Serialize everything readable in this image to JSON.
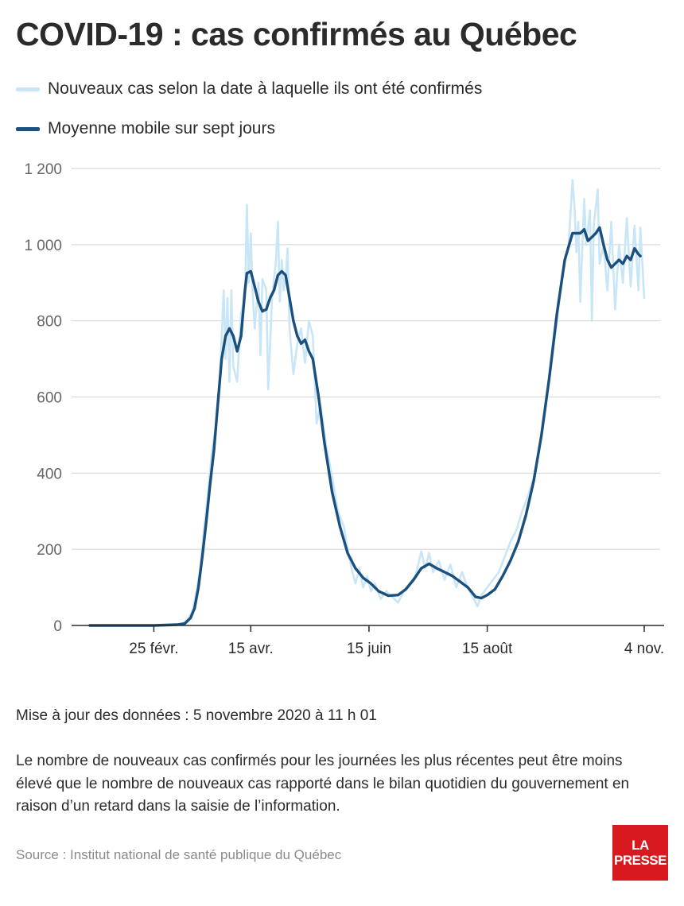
{
  "title": "COVID-19 : cas confirmés au Québec",
  "legend": [
    {
      "label": "Nouveaux cas selon la date à laquelle ils ont été confirmés",
      "color": "#c9e6f7"
    },
    {
      "label": "Moyenne mobile sur sept jours",
      "color": "#1b4f7d"
    }
  ],
  "footer": {
    "update": "Mise à jour des données : 5 novembre 2020 à 11 h 01",
    "note": "Le nombre de nouveaux cas confirmés pour les journées les plus récentes peut être moins élevé que le nombre de nouveaux cas rapporté dans le bilan quotidien du gouvernement en raison d’un retard dans la saisie de l’information.",
    "source": "Source : Institut national de santé publique du Québec"
  },
  "logo": {
    "line1": "LA",
    "line2": "PRESSE"
  },
  "chart_data": {
    "type": "line",
    "ylim": [
      0,
      1200
    ],
    "grid": true,
    "x_range": [
      "2020-01-23",
      "2020-11-04"
    ],
    "y_ticks": [
      0,
      200,
      400,
      600,
      800,
      1000,
      1200
    ],
    "y_tick_labels": [
      "0",
      "200",
      "400",
      "600",
      "800",
      "1 000",
      "1 200"
    ],
    "x_ticks": [
      {
        "date": "2020-02-25",
        "label": "25 févr."
      },
      {
        "date": "2020-04-15",
        "label": "15 avr."
      },
      {
        "date": "2020-06-15",
        "label": "15 juin"
      },
      {
        "date": "2020-08-15",
        "label": "15 août"
      },
      {
        "date": "2020-11-04",
        "label": "4 nov."
      }
    ],
    "series": [
      {
        "name": "Nouveaux cas selon la date à laquelle ils ont été confirmés",
        "color": "#c9e6f7",
        "points": [
          [
            "2020-01-23",
            0
          ],
          [
            "2020-02-25",
            0
          ],
          [
            "2020-03-05",
            0
          ],
          [
            "2020-03-08",
            2
          ],
          [
            "2020-03-11",
            5
          ],
          [
            "2020-03-14",
            20
          ],
          [
            "2020-03-16",
            40
          ],
          [
            "2020-03-18",
            90
          ],
          [
            "2020-03-20",
            150
          ],
          [
            "2020-03-22",
            260
          ],
          [
            "2020-03-24",
            350
          ],
          [
            "2020-03-26",
            460
          ],
          [
            "2020-03-28",
            520
          ],
          [
            "2020-03-30",
            640
          ],
          [
            "2020-04-01",
            880
          ],
          [
            "2020-04-02",
            700
          ],
          [
            "2020-04-03",
            860
          ],
          [
            "2020-04-04",
            640
          ],
          [
            "2020-04-05",
            880
          ],
          [
            "2020-04-06",
            680
          ],
          [
            "2020-04-08",
            640
          ],
          [
            "2020-04-10",
            820
          ],
          [
            "2020-04-12",
            860
          ],
          [
            "2020-04-13",
            1105
          ],
          [
            "2020-04-14",
            900
          ],
          [
            "2020-04-15",
            1030
          ],
          [
            "2020-04-16",
            870
          ],
          [
            "2020-04-17",
            780
          ],
          [
            "2020-04-19",
            900
          ],
          [
            "2020-04-20",
            710
          ],
          [
            "2020-04-21",
            910
          ],
          [
            "2020-04-23",
            880
          ],
          [
            "2020-04-24",
            620
          ],
          [
            "2020-04-26",
            860
          ],
          [
            "2020-04-28",
            960
          ],
          [
            "2020-04-29",
            1060
          ],
          [
            "2020-04-30",
            850
          ],
          [
            "2020-05-01",
            960
          ],
          [
            "2020-05-02",
            880
          ],
          [
            "2020-05-03",
            910
          ],
          [
            "2020-05-04",
            990
          ],
          [
            "2020-05-05",
            780
          ],
          [
            "2020-05-07",
            660
          ],
          [
            "2020-05-09",
            740
          ],
          [
            "2020-05-11",
            780
          ],
          [
            "2020-05-13",
            690
          ],
          [
            "2020-05-15",
            800
          ],
          [
            "2020-05-17",
            760
          ],
          [
            "2020-05-19",
            530
          ],
          [
            "2020-05-21",
            580
          ],
          [
            "2020-05-24",
            470
          ],
          [
            "2020-05-27",
            390
          ],
          [
            "2020-05-30",
            300
          ],
          [
            "2020-06-02",
            260
          ],
          [
            "2020-06-04",
            200
          ],
          [
            "2020-06-06",
            150
          ],
          [
            "2020-06-08",
            110
          ],
          [
            "2020-06-10",
            150
          ],
          [
            "2020-06-12",
            100
          ],
          [
            "2020-06-14",
            130
          ],
          [
            "2020-06-16",
            90
          ],
          [
            "2020-06-18",
            110
          ],
          [
            "2020-06-21",
            70
          ],
          [
            "2020-06-24",
            90
          ],
          [
            "2020-06-27",
            75
          ],
          [
            "2020-06-30",
            60
          ],
          [
            "2020-07-03",
            90
          ],
          [
            "2020-07-06",
            110
          ],
          [
            "2020-07-09",
            130
          ],
          [
            "2020-07-12",
            195
          ],
          [
            "2020-07-14",
            150
          ],
          [
            "2020-07-16",
            190
          ],
          [
            "2020-07-18",
            140
          ],
          [
            "2020-07-21",
            170
          ],
          [
            "2020-07-24",
            120
          ],
          [
            "2020-07-27",
            160
          ],
          [
            "2020-07-30",
            100
          ],
          [
            "2020-08-02",
            140
          ],
          [
            "2020-08-05",
            100
          ],
          [
            "2020-08-08",
            70
          ],
          [
            "2020-08-10",
            50
          ],
          [
            "2020-08-12",
            80
          ],
          [
            "2020-08-15",
            100
          ],
          [
            "2020-08-18",
            120
          ],
          [
            "2020-08-21",
            140
          ],
          [
            "2020-08-24",
            180
          ],
          [
            "2020-08-27",
            220
          ],
          [
            "2020-08-30",
            250
          ],
          [
            "2020-09-02",
            300
          ],
          [
            "2020-09-05",
            340
          ],
          [
            "2020-09-08",
            390
          ],
          [
            "2020-09-11",
            470
          ],
          [
            "2020-09-14",
            580
          ],
          [
            "2020-09-17",
            680
          ],
          [
            "2020-09-20",
            800
          ],
          [
            "2020-09-23",
            930
          ],
          [
            "2020-09-26",
            1000
          ],
          [
            "2020-09-28",
            1170
          ],
          [
            "2020-09-29",
            1100
          ],
          [
            "2020-09-30",
            980
          ],
          [
            "2020-10-01",
            1060
          ],
          [
            "2020-10-02",
            850
          ],
          [
            "2020-10-04",
            1120
          ],
          [
            "2020-10-05",
            1000
          ],
          [
            "2020-10-07",
            1090
          ],
          [
            "2020-10-08",
            800
          ],
          [
            "2020-10-09",
            1050
          ],
          [
            "2020-10-11",
            1145
          ],
          [
            "2020-10-12",
            950
          ],
          [
            "2020-10-14",
            1000
          ],
          [
            "2020-10-16",
            880
          ],
          [
            "2020-10-18",
            1060
          ],
          [
            "2020-10-20",
            830
          ],
          [
            "2020-10-22",
            1000
          ],
          [
            "2020-10-24",
            900
          ],
          [
            "2020-10-26",
            1070
          ],
          [
            "2020-10-28",
            890
          ],
          [
            "2020-10-30",
            1050
          ],
          [
            "2020-11-01",
            880
          ],
          [
            "2020-11-02",
            1045
          ],
          [
            "2020-11-04",
            860
          ]
        ]
      },
      {
        "name": "Moyenne mobile sur sept jours",
        "color": "#1b4f7d",
        "points": [
          [
            "2020-01-23",
            0
          ],
          [
            "2020-02-25",
            0
          ],
          [
            "2020-03-08",
            2
          ],
          [
            "2020-03-12",
            5
          ],
          [
            "2020-03-15",
            20
          ],
          [
            "2020-03-17",
            45
          ],
          [
            "2020-03-19",
            100
          ],
          [
            "2020-03-21",
            180
          ],
          [
            "2020-03-23",
            270
          ],
          [
            "2020-03-25",
            370
          ],
          [
            "2020-03-27",
            460
          ],
          [
            "2020-03-29",
            580
          ],
          [
            "2020-03-31",
            700
          ],
          [
            "2020-04-02",
            760
          ],
          [
            "2020-04-04",
            780
          ],
          [
            "2020-04-06",
            760
          ],
          [
            "2020-04-08",
            720
          ],
          [
            "2020-04-10",
            760
          ],
          [
            "2020-04-12",
            880
          ],
          [
            "2020-04-13",
            925
          ],
          [
            "2020-04-15",
            930
          ],
          [
            "2020-04-17",
            890
          ],
          [
            "2020-04-19",
            850
          ],
          [
            "2020-04-21",
            825
          ],
          [
            "2020-04-23",
            830
          ],
          [
            "2020-04-25",
            860
          ],
          [
            "2020-04-27",
            880
          ],
          [
            "2020-04-29",
            920
          ],
          [
            "2020-05-01",
            930
          ],
          [
            "2020-05-03",
            920
          ],
          [
            "2020-05-05",
            860
          ],
          [
            "2020-05-07",
            800
          ],
          [
            "2020-05-09",
            760
          ],
          [
            "2020-05-11",
            740
          ],
          [
            "2020-05-13",
            750
          ],
          [
            "2020-05-15",
            720
          ],
          [
            "2020-05-17",
            700
          ],
          [
            "2020-05-20",
            600
          ],
          [
            "2020-05-23",
            480
          ],
          [
            "2020-05-27",
            350
          ],
          [
            "2020-05-31",
            260
          ],
          [
            "2020-06-04",
            190
          ],
          [
            "2020-06-08",
            150
          ],
          [
            "2020-06-12",
            125
          ],
          [
            "2020-06-16",
            110
          ],
          [
            "2020-06-20",
            90
          ],
          [
            "2020-06-25",
            78
          ],
          [
            "2020-06-30",
            80
          ],
          [
            "2020-07-04",
            95
          ],
          [
            "2020-07-08",
            120
          ],
          [
            "2020-07-12",
            150
          ],
          [
            "2020-07-16",
            162
          ],
          [
            "2020-07-20",
            150
          ],
          [
            "2020-07-24",
            140
          ],
          [
            "2020-07-28",
            130
          ],
          [
            "2020-08-01",
            115
          ],
          [
            "2020-08-05",
            100
          ],
          [
            "2020-08-09",
            75
          ],
          [
            "2020-08-12",
            72
          ],
          [
            "2020-08-15",
            80
          ],
          [
            "2020-08-19",
            95
          ],
          [
            "2020-08-23",
            130
          ],
          [
            "2020-08-27",
            170
          ],
          [
            "2020-08-31",
            220
          ],
          [
            "2020-09-04",
            290
          ],
          [
            "2020-09-08",
            380
          ],
          [
            "2020-09-12",
            500
          ],
          [
            "2020-09-16",
            650
          ],
          [
            "2020-09-20",
            820
          ],
          [
            "2020-09-24",
            960
          ],
          [
            "2020-09-28",
            1030
          ],
          [
            "2020-10-02",
            1030
          ],
          [
            "2020-10-04",
            1040
          ],
          [
            "2020-10-06",
            1010
          ],
          [
            "2020-10-08",
            1020
          ],
          [
            "2020-10-10",
            1030
          ],
          [
            "2020-10-12",
            1045
          ],
          [
            "2020-10-14",
            1000
          ],
          [
            "2020-10-16",
            960
          ],
          [
            "2020-10-18",
            940
          ],
          [
            "2020-10-20",
            950
          ],
          [
            "2020-10-22",
            960
          ],
          [
            "2020-10-24",
            950
          ],
          [
            "2020-10-26",
            970
          ],
          [
            "2020-10-28",
            960
          ],
          [
            "2020-10-30",
            990
          ],
          [
            "2020-11-01",
            975
          ],
          [
            "2020-11-02",
            970
          ]
        ]
      }
    ]
  }
}
